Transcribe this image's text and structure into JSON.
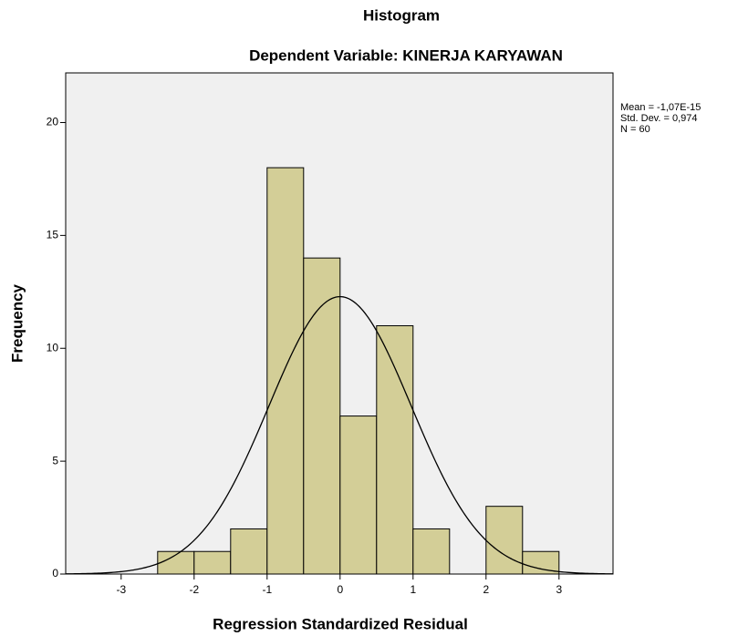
{
  "chart_data": {
    "type": "histogram",
    "title": "Histogram",
    "subtitle": "Dependent Variable: KINERJA KARYAWAN",
    "x_label": "Regression Standardized Residual",
    "y_label": "Frequency",
    "bins": [
      -2.5,
      -2,
      -1.5,
      -1,
      -0.5,
      0,
      0.5,
      1,
      1.5,
      2,
      2.5,
      3
    ],
    "counts": [
      1,
      1,
      2,
      18,
      14,
      7,
      11,
      2,
      0,
      3,
      1
    ],
    "color": "#d3ce97",
    "background": "#f0f0f0",
    "xlim": [
      -3.76,
      3.74
    ],
    "xticks": [
      -3,
      -2,
      -1,
      0,
      1,
      2,
      3
    ],
    "ylim": [
      0,
      22.2
    ],
    "yticks": [
      0,
      5,
      10,
      15,
      20
    ],
    "stats": {
      "mean": {
        "value": -1.07e-15,
        "label": "Mean = -1,07E-15"
      },
      "std": {
        "value": 0.974,
        "label": "Std. Dev. = 0,974"
      },
      "n": {
        "value": 60,
        "label": "N = 60"
      }
    },
    "normal_curve": true
  }
}
